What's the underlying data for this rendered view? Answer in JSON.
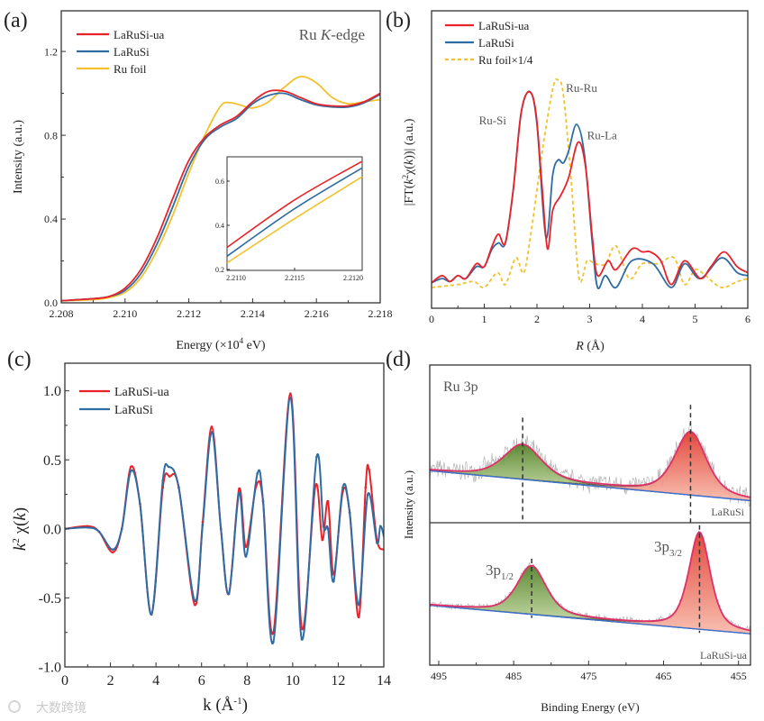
{
  "colors": {
    "red": "#e8232a",
    "blue": "#2e6ca4",
    "yellow": "#f3c12b",
    "green_fill": "#6f9a34",
    "red_fill": "#e8483a",
    "envelope": "#e0306a",
    "raw": "#aaaaaa"
  },
  "watermark": "大数跨境",
  "chart_data": [
    {
      "panel": "(a)",
      "type": "line",
      "annotation": {
        "prefix": "Ru ",
        "italic": "K",
        "suffix": "-edge"
      },
      "xlabel": {
        "main": "Energy (×10",
        "sup": "4",
        "tail": " eV)"
      },
      "ylabel": "Intensity (a.u.)",
      "xlim": [
        2.208,
        2.218
      ],
      "ylim": [
        0,
        1.394
      ],
      "xticks": [
        "2.208",
        "2.210",
        "2.212",
        "2.214",
        "2.216",
        "2.218"
      ],
      "yticks": [
        "0.0",
        "0.4",
        "0.8",
        "1.2"
      ],
      "legend": "top-left",
      "series": [
        {
          "name": "LaRuSi-ua",
          "color": "red",
          "x": [
            2.208,
            2.209,
            2.2095,
            2.21,
            2.2105,
            2.211,
            2.2115,
            2.212,
            2.2125,
            2.213,
            2.2135,
            2.214,
            2.2145,
            2.215,
            2.2155,
            2.216,
            2.2165,
            2.217,
            2.2175,
            2.218
          ],
          "y": [
            0.01,
            0.02,
            0.03,
            0.07,
            0.16,
            0.31,
            0.5,
            0.68,
            0.79,
            0.85,
            0.89,
            0.96,
            1.01,
            1.01,
            0.98,
            0.95,
            0.94,
            0.94,
            0.96,
            1.0
          ]
        },
        {
          "name": "LaRuSi",
          "color": "blue",
          "x": [
            2.208,
            2.209,
            2.2095,
            2.21,
            2.2105,
            2.211,
            2.2115,
            2.212,
            2.2125,
            2.213,
            2.2135,
            2.214,
            2.2145,
            2.215,
            2.2155,
            2.216,
            2.2165,
            2.217,
            2.2175,
            2.218
          ],
          "y": [
            0.01,
            0.02,
            0.03,
            0.06,
            0.14,
            0.28,
            0.46,
            0.65,
            0.78,
            0.84,
            0.88,
            0.95,
            0.99,
            1.0,
            0.97,
            0.945,
            0.935,
            0.935,
            0.955,
            0.995
          ]
        },
        {
          "name": "Ru foil",
          "color": "yellow",
          "x": [
            2.208,
            2.209,
            2.2095,
            2.21,
            2.2105,
            2.211,
            2.2115,
            2.212,
            2.2125,
            2.213,
            2.2133,
            2.2136,
            2.214,
            2.2145,
            2.215,
            2.2155,
            2.216,
            2.2165,
            2.217,
            2.2175,
            2.218
          ],
          "y": [
            0.01,
            0.015,
            0.025,
            0.05,
            0.12,
            0.25,
            0.42,
            0.62,
            0.8,
            0.94,
            0.955,
            0.945,
            0.93,
            0.96,
            1.03,
            1.08,
            1.05,
            0.98,
            0.95,
            0.96,
            0.97
          ]
        }
      ],
      "inset": {
        "xlim": [
          2.211,
          2.212
        ],
        "ylim": [
          0.196,
          0.71
        ],
        "xticks": [
          "2.2110",
          "2.2115",
          "2.2120"
        ],
        "yticks": [
          "0.2",
          "0.4",
          "0.6"
        ],
        "series": [
          {
            "name": "LaRuSi-ua",
            "color": "red",
            "x": [
              2.211,
              2.2115,
              2.212
            ],
            "y": [
              0.3,
              0.515,
              0.69
            ]
          },
          {
            "name": "LaRuSi",
            "color": "blue",
            "x": [
              2.211,
              2.2115,
              2.212
            ],
            "y": [
              0.26,
              0.475,
              0.66
            ]
          },
          {
            "name": "Ru foil",
            "color": "yellow",
            "x": [
              2.211,
              2.2115,
              2.212
            ],
            "y": [
              0.23,
              0.43,
              0.62
            ]
          }
        ]
      }
    },
    {
      "panel": "(b)",
      "type": "line",
      "xlabel": {
        "italic": "R",
        "tail": " (Å)"
      },
      "ylabel": {
        "a": "|FT(",
        "k": "k",
        "sup": "2",
        "b": "χ(",
        "k2": "k",
        "c": "))| (a.u.)"
      },
      "xlim": [
        0,
        6
      ],
      "ylim": [
        0,
        1
      ],
      "xticks": [
        "0",
        "1",
        "2",
        "3",
        "4",
        "5",
        "6"
      ],
      "legend": "top-left",
      "annotations": [
        {
          "text": "Ru-Si",
          "x": 0.9,
          "y": 0.62
        },
        {
          "text": "Ru-Ru",
          "x": 2.55,
          "y": 0.73
        },
        {
          "text": "Ru-La",
          "x": 2.95,
          "y": 0.57
        }
      ],
      "series": [
        {
          "name": "LaRuSi-ua",
          "color": "red",
          "dash": false,
          "x": [
            0,
            0.2,
            0.35,
            0.5,
            0.65,
            0.85,
            1.0,
            1.15,
            1.27,
            1.4,
            1.55,
            1.7,
            1.85,
            1.98,
            2.1,
            2.2,
            2.3,
            2.45,
            2.6,
            2.78,
            2.92,
            3.05,
            3.15,
            3.35,
            3.5,
            3.8,
            4.0,
            4.15,
            4.35,
            4.55,
            4.8,
            5.1,
            5.3,
            5.55,
            5.8,
            6.0
          ],
          "y": [
            0.086,
            0.11,
            0.09,
            0.11,
            0.1,
            0.15,
            0.14,
            0.21,
            0.25,
            0.22,
            0.4,
            0.66,
            0.73,
            0.66,
            0.4,
            0.2,
            0.33,
            0.38,
            0.44,
            0.56,
            0.48,
            0.24,
            0.11,
            0.16,
            0.13,
            0.2,
            0.19,
            0.19,
            0.16,
            0.08,
            0.16,
            0.1,
            0.14,
            0.19,
            0.14,
            0.12
          ]
        },
        {
          "name": "LaRuSi",
          "color": "blue",
          "dash": false,
          "x": [
            0,
            0.2,
            0.35,
            0.5,
            0.65,
            0.85,
            1.0,
            1.15,
            1.27,
            1.4,
            1.55,
            1.7,
            1.87,
            2.0,
            2.17,
            2.3,
            2.4,
            2.5,
            2.6,
            2.75,
            2.9,
            3.05,
            3.15,
            3.3,
            3.5,
            3.8,
            4.2,
            4.55,
            4.8,
            5.1,
            5.5,
            5.8,
            6.0
          ],
          "y": [
            0.086,
            0.1,
            0.09,
            0.11,
            0.1,
            0.14,
            0.14,
            0.2,
            0.22,
            0.22,
            0.4,
            0.66,
            0.73,
            0.62,
            0.24,
            0.45,
            0.5,
            0.49,
            0.53,
            0.62,
            0.52,
            0.22,
            0.07,
            0.11,
            0.07,
            0.16,
            0.15,
            0.07,
            0.15,
            0.1,
            0.17,
            0.12,
            0.11
          ]
        },
        {
          "name": "Ru foil×1/4",
          "color": "yellow",
          "dash": true,
          "x": [
            0,
            0.5,
            0.8,
            1.0,
            1.25,
            1.4,
            1.6,
            1.75,
            1.9,
            2.1,
            2.3,
            2.4,
            2.5,
            2.65,
            2.8,
            2.95,
            3.1,
            3.3,
            3.5,
            3.75,
            4.0,
            4.3,
            4.6,
            4.8,
            5.0,
            5.2,
            5.5,
            5.8,
            6.0
          ],
          "y": [
            0.07,
            0.08,
            0.09,
            0.07,
            0.12,
            0.08,
            0.17,
            0.12,
            0.27,
            0.53,
            0.74,
            0.77,
            0.72,
            0.43,
            0.1,
            0.16,
            0.15,
            0.15,
            0.21,
            0.1,
            0.15,
            0.15,
            0.17,
            0.08,
            0.13,
            0.11,
            0.07,
            0.09,
            0.1
          ]
        }
      ]
    },
    {
      "panel": "(c)",
      "type": "line",
      "xlabel": {
        "main": "k (Å",
        "sup": "-1",
        "tail": ")"
      },
      "ylabel": {
        "k": "k",
        "sup": "2",
        "rest": " χ(",
        "k2": "k",
        "end": ")"
      },
      "xlim": [
        0,
        14
      ],
      "ylim": [
        -1.0,
        1.2
      ],
      "xticks": [
        "0",
        "2",
        "4",
        "6",
        "8",
        "10",
        "12",
        "14"
      ],
      "yticks": [
        "-1.0",
        "-0.5",
        "0.0",
        "0.5",
        "1.0"
      ],
      "legend": "top-left",
      "series": [
        {
          "name": "LaRuSi-ua",
          "color": "red",
          "x": [
            0,
            1,
            1.5,
            2.1,
            2.5,
            2.9,
            3.3,
            3.8,
            4.3,
            4.6,
            5.0,
            5.7,
            6.05,
            6.45,
            6.85,
            7.2,
            7.65,
            7.95,
            8.4,
            8.7,
            9.15,
            9.9,
            10.4,
            11.0,
            11.3,
            11.55,
            11.8,
            12.2,
            12.5,
            12.9,
            13.2,
            13.35,
            13.7,
            14.0
          ],
          "y": [
            0,
            0.02,
            -0.02,
            -0.17,
            0.0,
            0.45,
            0.18,
            -0.62,
            0.3,
            0.38,
            0.3,
            -0.55,
            0.05,
            0.74,
            0.0,
            -0.47,
            0.29,
            -0.13,
            0.31,
            0.2,
            -0.75,
            0.98,
            -0.72,
            0.31,
            -0.08,
            0.2,
            -0.33,
            0.27,
            0.12,
            -0.64,
            0.3,
            0.43,
            -0.08,
            -0.15
          ]
        },
        {
          "name": "LaRuSi",
          "color": "blue",
          "x": [
            0,
            1,
            1.5,
            2.1,
            2.5,
            2.9,
            3.3,
            3.8,
            4.3,
            4.55,
            5.0,
            5.7,
            6.05,
            6.45,
            6.85,
            7.2,
            7.65,
            7.95,
            8.45,
            8.7,
            9.15,
            9.9,
            10.4,
            11.05,
            11.35,
            11.55,
            11.8,
            12.2,
            12.5,
            12.9,
            13.3,
            13.7,
            13.85,
            14.0
          ],
          "y": [
            0,
            0.01,
            -0.02,
            -0.15,
            0.0,
            0.42,
            0.18,
            -0.62,
            0.35,
            0.45,
            0.3,
            -0.52,
            0.03,
            0.7,
            0.0,
            -0.47,
            0.26,
            -0.2,
            0.4,
            0.2,
            -0.82,
            0.95,
            -0.8,
            0.52,
            0.02,
            0.0,
            -0.38,
            0.3,
            0.12,
            -0.55,
            0.25,
            -0.1,
            0.02,
            -0.05
          ]
        }
      ]
    },
    {
      "panel": "(d)",
      "type": "line",
      "title": "Ru 3p",
      "xlabel": "Binding Energy (eV)",
      "ylabel": "Intensity (a.u.)",
      "xlim": [
        496.2,
        453.4
      ],
      "xticks": [
        "495",
        "485",
        "475",
        "465",
        "455"
      ],
      "peak_labels": [
        {
          "base": "3p",
          "sub": "1/2"
        },
        {
          "base": "3p",
          "sub": "3/2"
        }
      ],
      "spectra": [
        {
          "name": "LaRuSi",
          "ylim": [
            0,
            100
          ],
          "background": [
            33,
            14
          ],
          "peaks": [
            {
              "label": "3p1/2",
              "center": 483.8,
              "height": 22,
              "fwhm": 6.0,
              "fill": "green_fill"
            },
            {
              "label": "3p3/2",
              "center": 461.4,
              "height": 40,
              "fwhm": 5.0,
              "fill": "red_fill"
            }
          ],
          "noise": 8
        },
        {
          "name": "LaRuSi-ua",
          "ylim": [
            0,
            100
          ],
          "background": [
            42,
            22
          ],
          "peaks": [
            {
              "label": "3p1/2",
              "center": 482.6,
              "height": 34,
              "fwhm": 4.6,
              "fill": "green_fill"
            },
            {
              "label": "3p3/2",
              "center": 460.2,
              "height": 68,
              "fwhm": 3.4,
              "fill": "red_fill"
            }
          ],
          "noise": 3
        }
      ]
    }
  ]
}
